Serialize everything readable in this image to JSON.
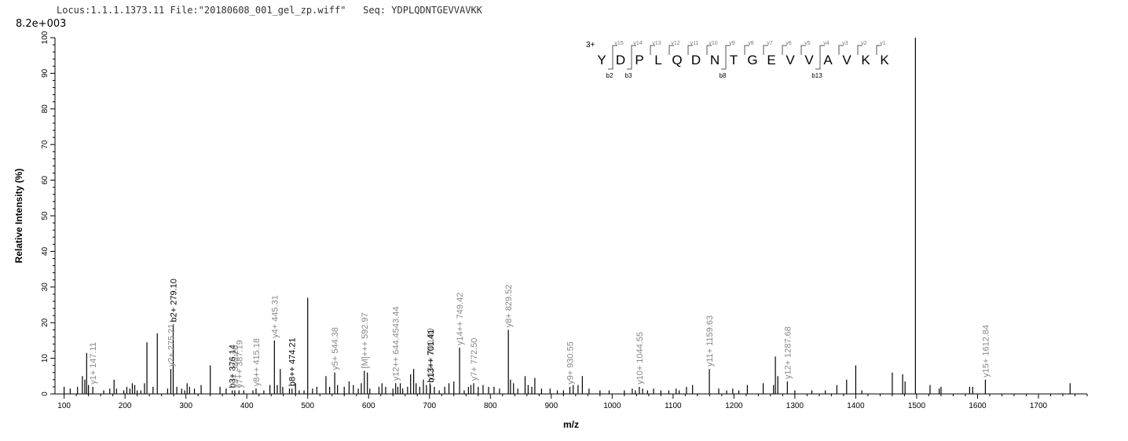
{
  "header": {
    "locus": "Locus:1.1.1.1373.11",
    "file": "File:\"20180608_001_gel_zp.wiff\"",
    "seq": "Seq: YDPLQDNTGEVVAVKK",
    "max_intensity": "8.2e+003"
  },
  "chart_data": {
    "type": "bar",
    "xlabel": "m/z",
    "ylabel": "Relative   Intensity (%)",
    "xlim": [
      85,
      1780
    ],
    "ylim": [
      0,
      100
    ],
    "xticks": [
      100,
      200,
      300,
      400,
      500,
      600,
      700,
      800,
      900,
      1000,
      1100,
      1200,
      1300,
      1400,
      1500,
      1600,
      1700
    ],
    "yticks": [
      0,
      10,
      20,
      30,
      40,
      50,
      60,
      70,
      80,
      90,
      100
    ],
    "peaks": [
      [
        100,
        2
      ],
      [
        110,
        1.5
      ],
      [
        122,
        2
      ],
      [
        130,
        5
      ],
      [
        134,
        4
      ],
      [
        137,
        11.5
      ],
      [
        140,
        2.5
      ],
      [
        147.11,
        2
      ],
      [
        165,
        1
      ],
      [
        175,
        1.5
      ],
      [
        182,
        4
      ],
      [
        186,
        1.5
      ],
      [
        198,
        1
      ],
      [
        203,
        2
      ],
      [
        208,
        1.5
      ],
      [
        212,
        3
      ],
      [
        216,
        2.5
      ],
      [
        220,
        1
      ],
      [
        226,
        1
      ],
      [
        232,
        3
      ],
      [
        236,
        14.5
      ],
      [
        246,
        2
      ],
      [
        253,
        17
      ],
      [
        270,
        1.5
      ],
      [
        275.21,
        7
      ],
      [
        279.1,
        19.5
      ],
      [
        285,
        2
      ],
      [
        293,
        1.5
      ],
      [
        298,
        1
      ],
      [
        302,
        3
      ],
      [
        306,
        2
      ],
      [
        314,
        1.5
      ],
      [
        325,
        2.5
      ],
      [
        340,
        8
      ],
      [
        356,
        2
      ],
      [
        366,
        1.5
      ],
      [
        376.14,
        1
      ],
      [
        380.28,
        1
      ],
      [
        387.19,
        1
      ],
      [
        395,
        1
      ],
      [
        410,
        1
      ],
      [
        415.18,
        1.5
      ],
      [
        428,
        1
      ],
      [
        438,
        2.5
      ],
      [
        445.31,
        15
      ],
      [
        450,
        2.5
      ],
      [
        455,
        7
      ],
      [
        459,
        2
      ],
      [
        470,
        1.5
      ],
      [
        474.21,
        1.5
      ],
      [
        480,
        3
      ],
      [
        486,
        1
      ],
      [
        494,
        1
      ],
      [
        500,
        27
      ],
      [
        508,
        1.5
      ],
      [
        515,
        2
      ],
      [
        530,
        5
      ],
      [
        536,
        2
      ],
      [
        544.38,
        6
      ],
      [
        549,
        2.5
      ],
      [
        560,
        2
      ],
      [
        568,
        3.5
      ],
      [
        575,
        2.5
      ],
      [
        583,
        1.5
      ],
      [
        588,
        3
      ],
      [
        592.97,
        6.5
      ],
      [
        598,
        6
      ],
      [
        602,
        1.5
      ],
      [
        617,
        2
      ],
      [
        622,
        3
      ],
      [
        628,
        2
      ],
      [
        640,
        1.5
      ],
      [
        644.45,
        3
      ],
      [
        648,
        2
      ],
      [
        652,
        3
      ],
      [
        656,
        1.5
      ],
      [
        664,
        2
      ],
      [
        669,
        5.5
      ],
      [
        674,
        7
      ],
      [
        678,
        3
      ],
      [
        684,
        2
      ],
      [
        690,
        4
      ],
      [
        695,
        2.5
      ],
      [
        700.89,
        3
      ],
      [
        701.41,
        2.5
      ],
      [
        708,
        2
      ],
      [
        716,
        1
      ],
      [
        725,
        2
      ],
      [
        732,
        3
      ],
      [
        740,
        3.5
      ],
      [
        749.42,
        13
      ],
      [
        757,
        1
      ],
      [
        764,
        2
      ],
      [
        768,
        2.5
      ],
      [
        772.5,
        3
      ],
      [
        780,
        2
      ],
      [
        788,
        2.5
      ],
      [
        797,
        2
      ],
      [
        806,
        2
      ],
      [
        815,
        1.5
      ],
      [
        829.52,
        18
      ],
      [
        833,
        4
      ],
      [
        838,
        3
      ],
      [
        845,
        1.5
      ],
      [
        857,
        5
      ],
      [
        862,
        2.5
      ],
      [
        868,
        2
      ],
      [
        873,
        4.5
      ],
      [
        884,
        1.5
      ],
      [
        898,
        1.5
      ],
      [
        910,
        1
      ],
      [
        920,
        1
      ],
      [
        930.55,
        2
      ],
      [
        936,
        2.5
      ],
      [
        944,
        2.5
      ],
      [
        951,
        5
      ],
      [
        962,
        1.5
      ],
      [
        980,
        1
      ],
      [
        995,
        1
      ],
      [
        1020,
        1
      ],
      [
        1033,
        1.5
      ],
      [
        1038,
        1
      ],
      [
        1044.55,
        2
      ],
      [
        1050,
        1.5
      ],
      [
        1058,
        1
      ],
      [
        1068,
        1.5
      ],
      [
        1080,
        1
      ],
      [
        1093,
        1
      ],
      [
        1105,
        1.5
      ],
      [
        1110,
        1
      ],
      [
        1122,
        2
      ],
      [
        1132,
        2.5
      ],
      [
        1159.63,
        7
      ],
      [
        1175,
        1.5
      ],
      [
        1188,
        1
      ],
      [
        1198,
        1.5
      ],
      [
        1208,
        1
      ],
      [
        1222,
        2.5
      ],
      [
        1248,
        3
      ],
      [
        1265,
        2.5
      ],
      [
        1268,
        10.5
      ],
      [
        1272,
        5
      ],
      [
        1287.68,
        3.5
      ],
      [
        1300,
        1
      ],
      [
        1328,
        1
      ],
      [
        1350,
        1
      ],
      [
        1369,
        2.5
      ],
      [
        1385,
        4
      ],
      [
        1400,
        8
      ],
      [
        1410,
        1
      ],
      [
        1460,
        6
      ],
      [
        1477,
        5.5
      ],
      [
        1481,
        3.5
      ],
      [
        1498,
        100
      ],
      [
        1522,
        2.5
      ],
      [
        1537,
        1.5
      ],
      [
        1540,
        2
      ],
      [
        1587,
        2
      ],
      [
        1592,
        2
      ],
      [
        1612.84,
        4
      ],
      [
        1752,
        3
      ]
    ],
    "annotations": [
      {
        "x": 147.11,
        "y": 2,
        "label": "y1+ 147.11",
        "color": "#888888"
      },
      {
        "x": 275.21,
        "y": 7,
        "label": "y2+ 275.21",
        "color": "#888888"
      },
      {
        "x": 279.1,
        "y": 19.5,
        "label": "b2+ 279.10",
        "color": "#000000"
      },
      {
        "x": 376.14,
        "y": 1,
        "label": "b3+ 376.14",
        "color": "#000000"
      },
      {
        "x": 380.28,
        "y": 1,
        "label": "y3+ 380.28",
        "color": "#888888"
      },
      {
        "x": 387.19,
        "y": 1,
        "label": "y7++ 387.19",
        "color": "#888888"
      },
      {
        "x": 415.18,
        "y": 1.5,
        "label": "y8++ 415.18",
        "color": "#888888"
      },
      {
        "x": 445.31,
        "y": 15,
        "label": "y4+ 445.31",
        "color": "#888888"
      },
      {
        "x": 474.21,
        "y": 1.5,
        "label": "b8++ 474.21",
        "color": "#000000"
      },
      {
        "x": 544.38,
        "y": 6,
        "label": "y5+ 544.38",
        "color": "#888888"
      },
      {
        "x": 592.97,
        "y": 6.5,
        "label": "[M]+++ 592.97",
        "color": "#888888"
      },
      {
        "x": 644.45,
        "y": 3,
        "label": "y12++ 644.4543.44",
        "color": "#888888"
      },
      {
        "x": 700.89,
        "y": 3,
        "label": "y13++ 700.89",
        "color": "#888888"
      },
      {
        "x": 701.41,
        "y": 2.5,
        "label": "b13++ 701.41",
        "color": "#000000"
      },
      {
        "x": 749.42,
        "y": 13,
        "label": "y14++ 749.42",
        "color": "#888888"
      },
      {
        "x": 772.5,
        "y": 3,
        "label": "y7+ 772.50",
        "color": "#888888"
      },
      {
        "x": 829.52,
        "y": 18,
        "label": "y8+ 829.52",
        "color": "#888888"
      },
      {
        "x": 930.55,
        "y": 2,
        "label": "y9+ 930.55",
        "color": "#888888"
      },
      {
        "x": 1044.55,
        "y": 2,
        "label": "y10+ 1044.55",
        "color": "#888888"
      },
      {
        "x": 1159.63,
        "y": 7,
        "label": "y11+ 1159.63",
        "color": "#888888"
      },
      {
        "x": 1287.68,
        "y": 3.5,
        "label": "y12+ 1287.68",
        "color": "#888888"
      },
      {
        "x": 1612.84,
        "y": 4,
        "label": "y15+ 1612.84",
        "color": "#888888"
      }
    ]
  },
  "sequence": {
    "charge": "3+",
    "letters": [
      "Y",
      "D",
      "P",
      "L",
      "Q",
      "D",
      "N",
      "T",
      "G",
      "E",
      "V",
      "V",
      "A",
      "V",
      "K",
      "K"
    ],
    "y_ions": [
      "y15",
      "y14",
      "y13",
      "y12",
      "y11",
      "y10",
      "y9",
      "y8",
      "y7",
      "y6",
      "y5",
      "y4",
      "y3",
      "y2",
      "y1"
    ],
    "b_ions": [
      {
        "after": 1,
        "label": "b2"
      },
      {
        "after": 2,
        "label": "b3"
      },
      {
        "after": 7,
        "label": "b8"
      },
      {
        "after": 12,
        "label": "b13"
      }
    ]
  }
}
